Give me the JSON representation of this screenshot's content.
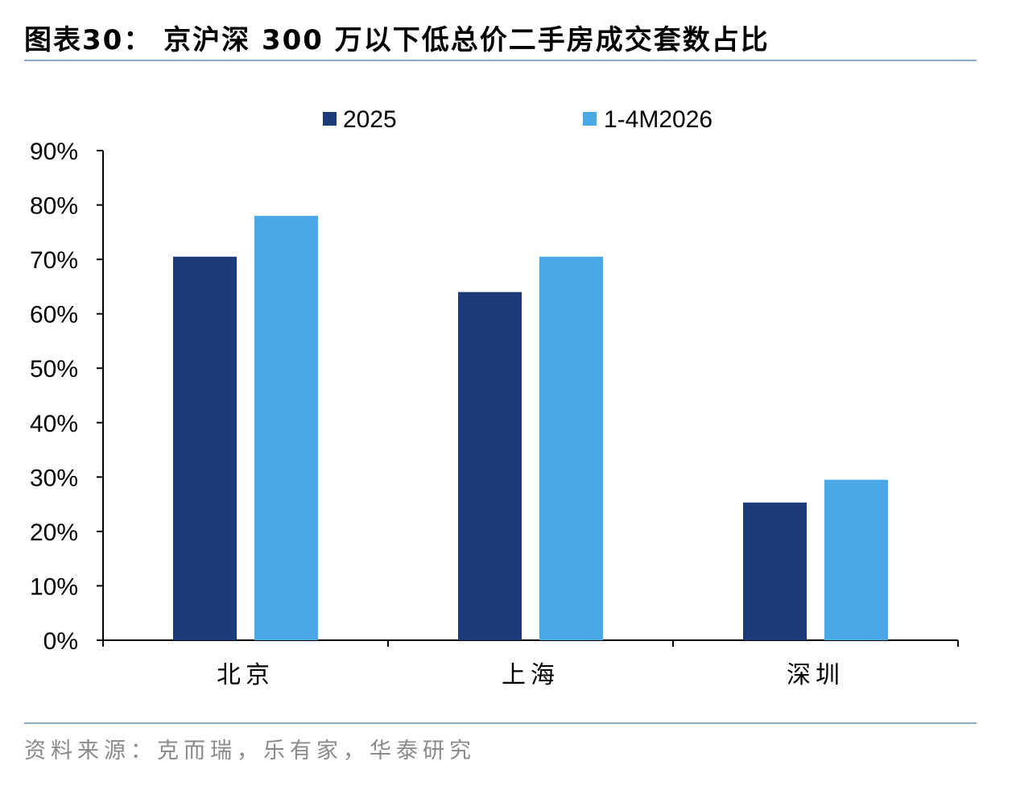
{
  "header": {
    "title": "图表30： 京沪深 300 万以下低总价二手房成交套数占比"
  },
  "footer": {
    "source": "资料来源：克而瑞，乐有家，华泰研究"
  },
  "chart_data": {
    "type": "bar",
    "title": "图表30： 京沪深 300 万以下低总价二手房成交套数占比",
    "categories": [
      "北京",
      "上海",
      "深圳"
    ],
    "series": [
      {
        "name": "2025",
        "values": [
          70.5,
          64.0,
          25.3
        ],
        "color": "#1b3a7a"
      },
      {
        "name": "1-4M2026",
        "values": [
          78.0,
          70.5,
          29.5
        ],
        "color": "#4aa8e8"
      }
    ],
    "yticks": [
      "0%",
      "10%",
      "20%",
      "30%",
      "40%",
      "50%",
      "60%",
      "70%",
      "80%",
      "90%"
    ],
    "ylim": [
      0,
      90
    ],
    "xlabel": "",
    "ylabel": "",
    "grid": false,
    "legend_position": "top-center"
  }
}
